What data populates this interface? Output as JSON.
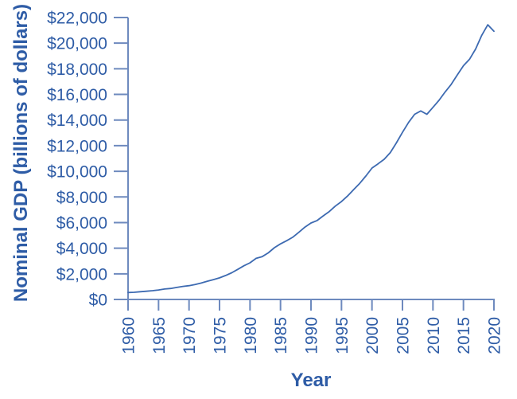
{
  "chart_data": {
    "type": "line",
    "title": "",
    "xlabel": "Year",
    "ylabel": "Nominal GDP (billions of dollars)",
    "x": [
      1960,
      1961,
      1962,
      1963,
      1964,
      1965,
      1966,
      1967,
      1968,
      1969,
      1970,
      1971,
      1972,
      1973,
      1974,
      1975,
      1976,
      1977,
      1978,
      1979,
      1980,
      1981,
      1982,
      1983,
      1984,
      1985,
      1986,
      1987,
      1988,
      1989,
      1990,
      1991,
      1992,
      1993,
      1994,
      1995,
      1996,
      1997,
      1998,
      1999,
      2000,
      2001,
      2002,
      2003,
      2004,
      2005,
      2006,
      2007,
      2008,
      2009,
      2010,
      2011,
      2012,
      2013,
      2014,
      2015,
      2016,
      2017,
      2018,
      2019,
      2020
    ],
    "series": [
      {
        "name": "Nominal GDP",
        "values": [
          542.4,
          562.2,
          603.9,
          637.5,
          684.5,
          742.3,
          813.4,
          860.0,
          940.7,
          1017.6,
          1073.3,
          1164.9,
          1279.1,
          1425.4,
          1545.2,
          1684.9,
          1873.4,
          2081.8,
          2351.6,
          2627.3,
          2857.3,
          3207.0,
          3343.8,
          3634.0,
          4037.6,
          4339.0,
          4579.6,
          4855.2,
          5236.4,
          5641.6,
          5963.1,
          6158.1,
          6520.3,
          6858.6,
          7287.2,
          7639.7,
          8073.1,
          8577.6,
          9062.8,
          9631.2,
          10252.3,
          10581.8,
          10936.4,
          11458.2,
          12213.7,
          13036.6,
          13814.6,
          14451.9,
          14712.8,
          14448.9,
          14992.1,
          15542.6,
          16197.0,
          16784.9,
          17527.3,
          18238.3,
          18745.1,
          19543.0,
          20611.9,
          21433.2,
          20932.8
        ]
      }
    ],
    "xlim": [
      1960,
      2020
    ],
    "ylim": [
      0,
      22000
    ],
    "grid": false,
    "legend": "none",
    "x_ticks": [
      {
        "value": 1960,
        "label": "1960"
      },
      {
        "value": 1965,
        "label": "1965"
      },
      {
        "value": 1970,
        "label": "1970"
      },
      {
        "value": 1975,
        "label": "1975"
      },
      {
        "value": 1980,
        "label": "1980"
      },
      {
        "value": 1985,
        "label": "1985"
      },
      {
        "value": 1990,
        "label": "1990"
      },
      {
        "value": 1995,
        "label": "1995"
      },
      {
        "value": 2000,
        "label": "2000"
      },
      {
        "value": 2005,
        "label": "2005"
      },
      {
        "value": 2010,
        "label": "2010"
      },
      {
        "value": 2015,
        "label": "2015"
      },
      {
        "value": 2020,
        "label": "2020"
      }
    ],
    "y_ticks": [
      {
        "value": 0,
        "label": "$0"
      },
      {
        "value": 2000,
        "label": "$2,000"
      },
      {
        "value": 4000,
        "label": "$4,000"
      },
      {
        "value": 6000,
        "label": "$6,000"
      },
      {
        "value": 8000,
        "label": "$8,000"
      },
      {
        "value": 10000,
        "label": "$10,000"
      },
      {
        "value": 12000,
        "label": "$12,000"
      },
      {
        "value": 14000,
        "label": "$14,000"
      },
      {
        "value": 16000,
        "label": "$16,000"
      },
      {
        "value": 18000,
        "label": "$18,000"
      },
      {
        "value": 20000,
        "label": "$20,000"
      },
      {
        "value": 22000,
        "label": "$22,000"
      }
    ],
    "colors": {
      "text": "#2e5ca6",
      "axis": "#6e8abe",
      "line": "#3d6ab1"
    }
  }
}
